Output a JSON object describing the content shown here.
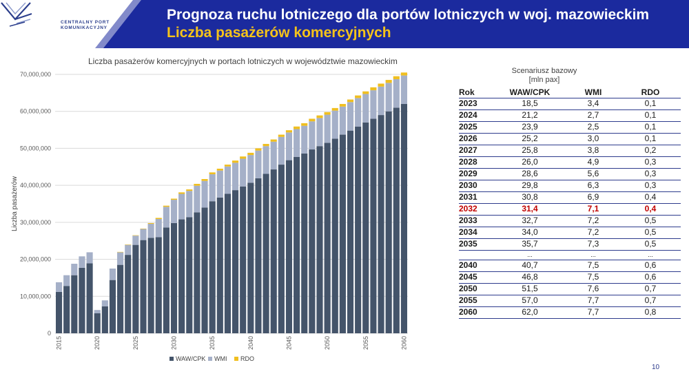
{
  "header": {
    "title_line1": "Prognoza ruchu lotniczego dla portów lotniczych w woj. mazowieckim",
    "title_line2": "Liczba pasażerów komercyjnych",
    "logo_line1": "CENTRALNY PORT",
    "logo_line2": "KOMUNIKACYJNY"
  },
  "colors": {
    "header_bg": "#1b2a9e",
    "waw": "#44546a",
    "wmi": "#a5b0c8",
    "rdo": "#f0bf20",
    "accent": "#f5c31a"
  },
  "chart_data": {
    "type": "bar",
    "stacked": true,
    "title": "Liczba pasażerów komercyjnych w portach lotniczych w województwie mazowieckim",
    "ylabel": "Liczba pasażerów",
    "ylim": [
      0,
      70000000
    ],
    "yticks": [
      0,
      10000000,
      20000000,
      30000000,
      40000000,
      50000000,
      60000000,
      70000000
    ],
    "ytick_labels": [
      "0",
      "10,000,000",
      "20,000,000",
      "30,000,000",
      "40,000,000",
      "50,000,000",
      "60,000,000",
      "70,000,000"
    ],
    "xtick_labels": [
      "2015",
      "2020",
      "2025",
      "2030",
      "2035",
      "2040",
      "2045",
      "2050",
      "2055",
      "2060"
    ],
    "grid": true,
    "legend": "bottom",
    "categories": [
      2015,
      2016,
      2017,
      2018,
      2019,
      2020,
      2021,
      2022,
      2023,
      2024,
      2025,
      2026,
      2027,
      2028,
      2029,
      2030,
      2031,
      2032,
      2033,
      2034,
      2035,
      2036,
      2037,
      2038,
      2039,
      2040,
      2041,
      2042,
      2043,
      2044,
      2045,
      2046,
      2047,
      2048,
      2049,
      2050,
      2051,
      2052,
      2053,
      2054,
      2055,
      2056,
      2057,
      2058,
      2059,
      2060
    ],
    "series": [
      {
        "name": "WAW/CPK",
        "values": [
          11200000,
          12800000,
          15700000,
          17700000,
          18900000,
          5400000,
          7300000,
          14400000,
          18500000,
          21200000,
          23900000,
          25200000,
          25800000,
          26000000,
          28600000,
          29800000,
          30800000,
          31400000,
          32700000,
          34000000,
          35700000,
          36700000,
          37700000,
          38700000,
          39700000,
          40700000,
          41900000,
          43100000,
          44300000,
          45600000,
          46800000,
          47700000,
          48600000,
          49700000,
          50600000,
          51500000,
          52600000,
          53700000,
          54800000,
          55900000,
          57000000,
          58000000,
          59000000,
          60000000,
          61000000,
          62000000
        ]
      },
      {
        "name": "WMI",
        "values": [
          2600000,
          2900000,
          3100000,
          3100000,
          3000000,
          900000,
          1600000,
          3100000,
          3400000,
          2700000,
          2500000,
          3000000,
          3800000,
          4900000,
          5600000,
          6300000,
          6900000,
          7100000,
          7200000,
          7200000,
          7300000,
          7300000,
          7400000,
          7400000,
          7500000,
          7500000,
          7500000,
          7500000,
          7500000,
          7500000,
          7500000,
          7500000,
          7500000,
          7600000,
          7600000,
          7600000,
          7600000,
          7600000,
          7700000,
          7700000,
          7700000,
          7700000,
          7700000,
          7700000,
          7700000,
          7700000
        ]
      },
      {
        "name": "RDO",
        "values": [
          0,
          0,
          0,
          0,
          0,
          0,
          0,
          0,
          100000,
          100000,
          100000,
          100000,
          200000,
          300000,
          300000,
          300000,
          400000,
          400000,
          500000,
          500000,
          500000,
          500000,
          500000,
          600000,
          600000,
          600000,
          600000,
          600000,
          600000,
          600000,
          600000,
          700000,
          700000,
          700000,
          700000,
          700000,
          700000,
          700000,
          700000,
          700000,
          700000,
          800000,
          800000,
          800000,
          800000,
          800000
        ]
      }
    ]
  },
  "table": {
    "caption_line1": "Scenariusz bazowy",
    "caption_line2": "[mln pax]",
    "headers": [
      "Rok",
      "WAW/CPK",
      "WMI",
      "RDO"
    ],
    "rows": [
      [
        "2023",
        "18,5",
        "3,4",
        "0,1"
      ],
      [
        "2024",
        "21,2",
        "2,7",
        "0,1"
      ],
      [
        "2025",
        "23,9",
        "2,5",
        "0,1"
      ],
      [
        "2026",
        "25,2",
        "3,0",
        "0,1"
      ],
      [
        "2027",
        "25,8",
        "3,8",
        "0,2"
      ],
      [
        "2028",
        "26,0",
        "4,9",
        "0,3"
      ],
      [
        "2029",
        "28,6",
        "5,6",
        "0,3"
      ],
      [
        "2030",
        "29,8",
        "6,3",
        "0,3"
      ],
      [
        "2031",
        "30,8",
        "6,9",
        "0,4"
      ],
      [
        "2032",
        "31,4",
        "7,1",
        "0,4"
      ],
      [
        "2033",
        "32,7",
        "7,2",
        "0,5"
      ],
      [
        "2034",
        "34,0",
        "7,2",
        "0,5"
      ],
      [
        "2035",
        "35,7",
        "7,3",
        "0,5"
      ],
      [
        "",
        "...",
        "...",
        "..."
      ],
      [
        "2040",
        "40,7",
        "7,5",
        "0,6"
      ],
      [
        "2045",
        "46,8",
        "7,5",
        "0,6"
      ],
      [
        "2050",
        "51,5",
        "7,6",
        "0,7"
      ],
      [
        "2055",
        "57,0",
        "7,7",
        "0,7"
      ],
      [
        "2060",
        "62,0",
        "7,7",
        "0,8"
      ]
    ],
    "highlight_row": 9,
    "ellipsis_row": 13
  },
  "page_number": "10"
}
